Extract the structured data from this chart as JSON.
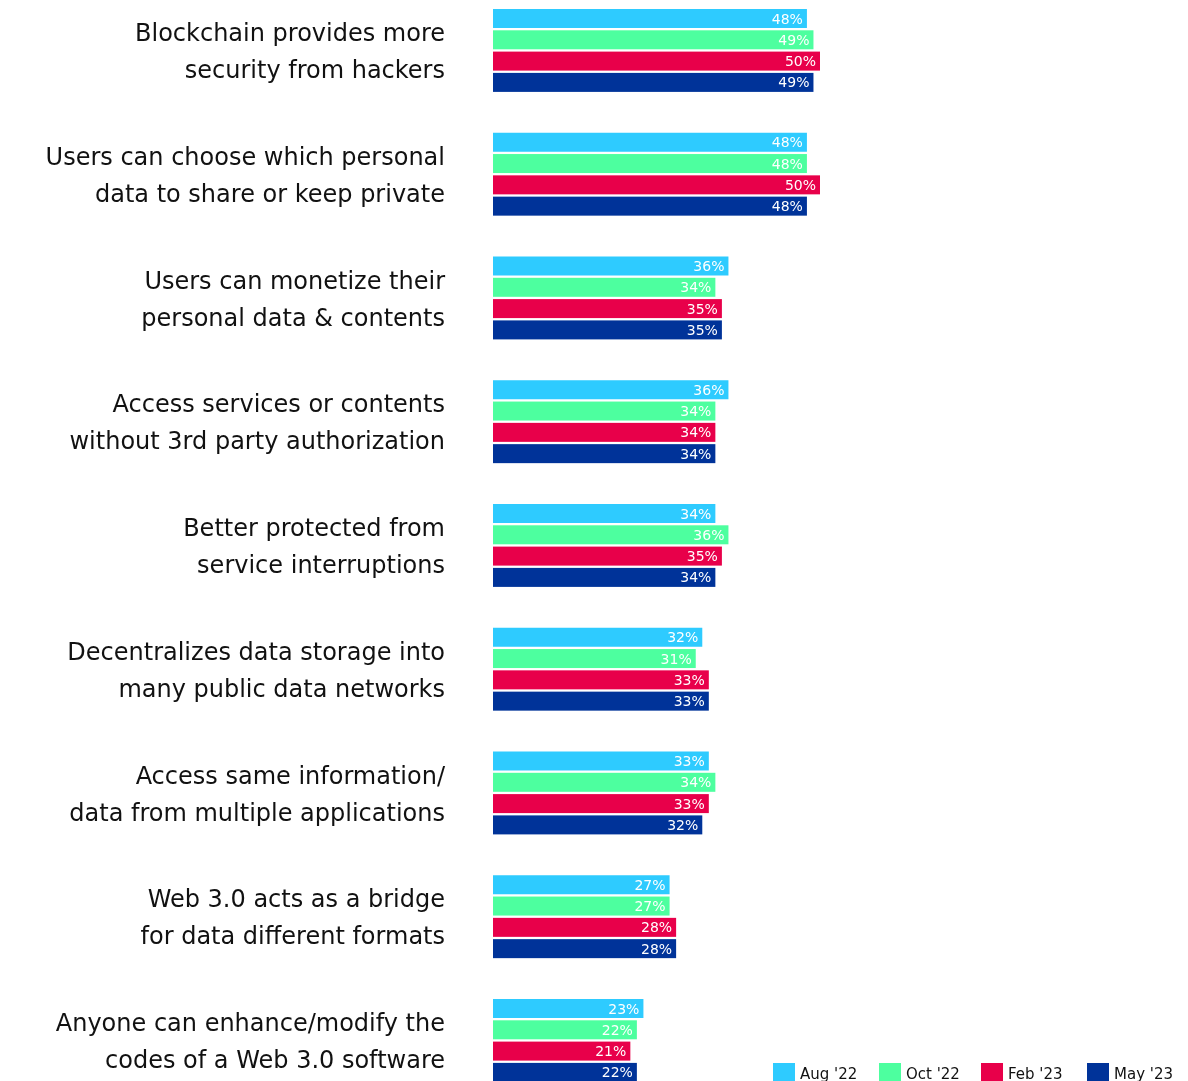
{
  "chart_data": {
    "type": "bar",
    "orientation": "horizontal",
    "legend": "bottom right",
    "categories": [
      "Blockchain provides more\nsecurity from hackers",
      "Users can choose which personal\ndata to share or keep private",
      "Users can monetize their\npersonal data & contents",
      "Access services or contents\nwithout 3rd party authorization",
      "Better protected from\nservice interruptions",
      "Decentralizes data storage into\nmany public data networks",
      "Access same information/\ndata from multiple applications",
      "Web 3.0 acts as a bridge\nfor data different formats",
      "Anyone can enhance/modify the\ncodes of a Web 3.0 software"
    ],
    "series": [
      {
        "name": "Aug '22",
        "color": "#2ecbff",
        "values": [
          48,
          48,
          36,
          36,
          34,
          32,
          33,
          27,
          23
        ],
        "value_labels": [
          "48%",
          "48%",
          "36%",
          "36%",
          "34%",
          "32%",
          "33%",
          "27%",
          "23%"
        ]
      },
      {
        "name": "Oct '22",
        "color": "#4dff9f",
        "values": [
          49,
          48,
          34,
          34,
          36,
          31,
          34,
          27,
          22
        ],
        "value_labels": [
          "49%",
          "48%",
          "34%",
          "34%",
          "36%",
          "31%",
          "34%",
          "27%",
          "22%"
        ]
      },
      {
        "name": "Feb '23",
        "color": "#e8004a",
        "values": [
          50,
          50,
          35,
          34,
          35,
          33,
          33,
          28,
          21
        ],
        "value_labels": [
          "50%",
          "50%",
          "35%",
          "34%",
          "35%",
          "33%",
          "33%",
          "28%",
          "21%"
        ]
      },
      {
        "name": "May '23",
        "color": "#003399",
        "values": [
          49,
          48,
          35,
          34,
          34,
          33,
          32,
          28,
          22
        ],
        "value_labels": [
          "49%",
          "48%",
          "35%",
          "34%",
          "34%",
          "33%",
          "32%",
          "28%",
          "22%"
        ]
      }
    ]
  }
}
